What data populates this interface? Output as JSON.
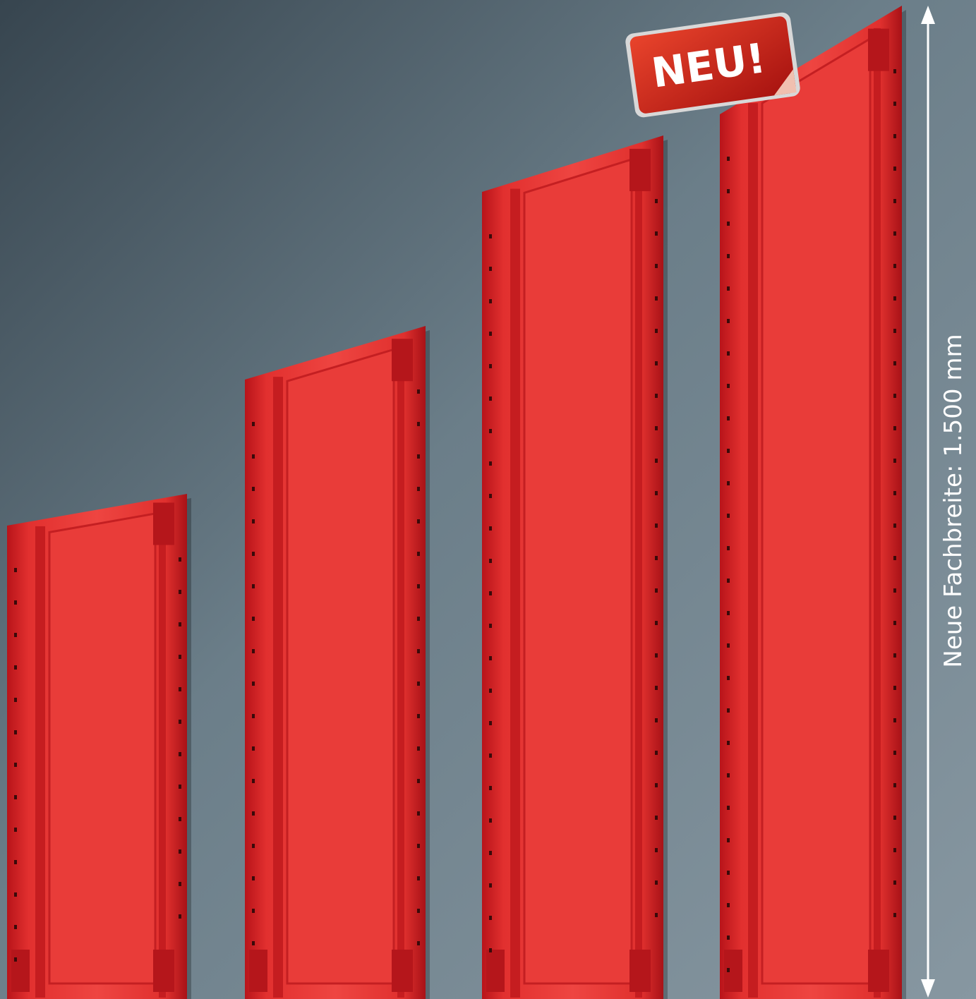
{
  "badge": {
    "text": "NEU!"
  },
  "dimension": {
    "label": "Neue Fachbreite: 1.500 mm"
  }
}
